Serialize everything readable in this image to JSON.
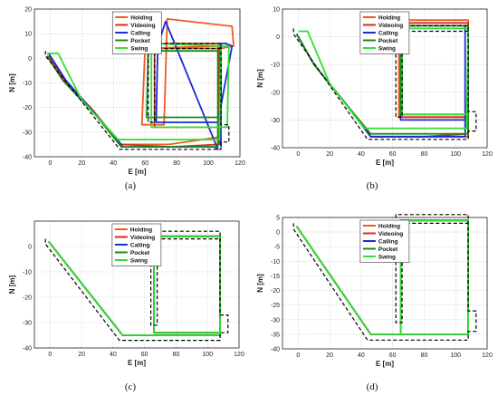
{
  "chart_data": [
    {
      "type": "line",
      "caption": "(a)",
      "xlabel": "E [m]",
      "ylabel": "N [m]",
      "xlim": [
        -10,
        120
      ],
      "ylim": [
        -40,
        20
      ],
      "xticks": [
        0,
        20,
        40,
        60,
        80,
        100,
        120
      ],
      "yticks": [
        20,
        10,
        0,
        -10,
        -20,
        -30,
        -40
      ],
      "grid": true,
      "legend_position": "top",
      "reference": {
        "name": "",
        "style": "dashed",
        "color": "#000000",
        "x": [
          -3,
          -3,
          44,
          108,
          108,
          113,
          113,
          108,
          108,
          62,
          62,
          66,
          66,
          108
        ],
        "y": [
          3,
          1,
          -37,
          -37,
          -34,
          -34,
          -27,
          -27,
          6,
          6,
          -26,
          -26,
          4,
          4
        ]
      },
      "series": [
        {
          "name": "Holding",
          "color": "#ee5a24",
          "x": [
            -2,
            6,
            27,
            44,
            75,
            107,
            106,
            60,
            58,
            72,
            74,
            115,
            116,
            108,
            66
          ],
          "y": [
            1,
            -7,
            -21,
            -35,
            -35,
            -32,
            5,
            4,
            -27,
            -27,
            16,
            13,
            5,
            4,
            4
          ]
        },
        {
          "name": "Videoing",
          "color": "#e0281a",
          "x": [
            -1,
            8,
            28,
            45,
            76,
            107,
            107,
            66,
            66,
            108
          ],
          "y": [
            1,
            -8,
            -22,
            -35,
            -36,
            -35,
            6,
            6,
            -28,
            -28
          ]
        },
        {
          "name": "Calling",
          "color": "#1b2bd6",
          "x": [
            -1,
            10,
            29,
            46,
            78,
            104,
            106,
            73,
            68,
            67,
            106,
            115,
            111,
            108,
            108
          ],
          "y": [
            2,
            -9,
            -23,
            -36,
            -36,
            -36,
            -37,
            15,
            5,
            -26,
            -26,
            5,
            6,
            6,
            -36
          ]
        },
        {
          "name": "Pocket",
          "color": "#1a8a1a",
          "x": [
            -2,
            8,
            30,
            45,
            80,
            106,
            106,
            62,
            61,
            107
          ],
          "y": [
            1,
            -9,
            -24,
            -36,
            -36,
            -36,
            3,
            3,
            -24,
            -24
          ]
        },
        {
          "name": "Swing",
          "color": "#33dd33",
          "x": [
            -2,
            5,
            20,
            43,
            107,
            108,
            64,
            64,
            112,
            113,
            105
          ],
          "y": [
            2,
            2,
            -17,
            -33,
            -33,
            5,
            6,
            -28,
            -28,
            5,
            5
          ]
        }
      ]
    },
    {
      "type": "line",
      "caption": "(b)",
      "xlabel": "E [m]",
      "ylabel": "N [m]",
      "xlim": [
        -10,
        120
      ],
      "ylim": [
        -40,
        10
      ],
      "xticks": [
        0,
        20,
        40,
        60,
        80,
        100,
        120
      ],
      "yticks": [
        10,
        0,
        -10,
        -20,
        -30,
        -40
      ],
      "grid": true,
      "legend_position": "top",
      "reference": {
        "name": "",
        "style": "dashed",
        "color": "#000000",
        "x": [
          -3,
          -3,
          44,
          108,
          108,
          113,
          113,
          108,
          108,
          62,
          62,
          66,
          66,
          108
        ],
        "y": [
          3,
          1,
          -37,
          -37,
          -34,
          -34,
          -27,
          -27,
          4,
          4,
          -29,
          -29,
          2,
          2
        ]
      },
      "series": [
        {
          "name": "Holding",
          "color": "#ee5a24",
          "x": [
            -1,
            10,
            30,
            46,
            80,
            108,
            108,
            64,
            64,
            108
          ],
          "y": [
            1,
            -10,
            -24,
            -36,
            -36,
            -36,
            6,
            6,
            -29,
            -29
          ]
        },
        {
          "name": "Videoing",
          "color": "#e0281a",
          "x": [
            -1,
            10,
            30,
            46,
            80,
            108,
            108,
            65,
            65,
            108
          ],
          "y": [
            1,
            -10,
            -24,
            -36,
            -36,
            -35,
            5,
            5,
            -29,
            -29
          ]
        },
        {
          "name": "Calling",
          "color": "#1b2bd6",
          "x": [
            -1,
            10,
            30,
            46,
            80,
            106,
            106,
            65,
            65,
            106
          ],
          "y": [
            1,
            -10,
            -24,
            -36,
            -36,
            -36,
            4,
            4,
            -30,
            -30
          ]
        },
        {
          "name": "Pocket",
          "color": "#1a8a1a",
          "x": [
            -1,
            10,
            30,
            46,
            80,
            108,
            108,
            65,
            65,
            108
          ],
          "y": [
            1,
            -10,
            -24,
            -35,
            -35,
            -35,
            4,
            4,
            -28,
            -28
          ]
        },
        {
          "name": "Swing",
          "color": "#33dd33",
          "x": [
            0,
            6,
            20,
            42,
            107,
            108,
            66,
            66,
            108
          ],
          "y": [
            2,
            2,
            -17,
            -33,
            -33,
            3,
            3,
            -28,
            -28
          ]
        }
      ]
    },
    {
      "type": "line",
      "caption": "(c)",
      "xlabel": "E [m]",
      "ylabel": "N [m]",
      "xlim": [
        -10,
        120
      ],
      "ylim": [
        -40,
        10
      ],
      "xticks": [
        0,
        20,
        40,
        60,
        80,
        100,
        120
      ],
      "yticks": [
        0,
        -10,
        -20,
        -30,
        -40
      ],
      "grid": true,
      "legend_position": "top",
      "reference": {
        "name": "",
        "style": "dashed",
        "color": "#000000",
        "x": [
          -3,
          -3,
          44,
          108,
          108,
          113,
          113,
          108,
          108,
          64,
          64,
          68,
          68,
          108
        ],
        "y": [
          3,
          1,
          -37,
          -37,
          -34,
          -34,
          -27,
          -27,
          6,
          6,
          -31,
          -31,
          3,
          3
        ]
      },
      "series": [
        {
          "name": "Holding",
          "color": "#ee5a24",
          "x": [
            -1,
            46,
            108,
            108,
            66,
            66,
            108
          ],
          "y": [
            2,
            -35,
            -35,
            4,
            4,
            -34,
            -34
          ]
        },
        {
          "name": "Videoing",
          "color": "#e0281a",
          "x": [
            -1,
            46,
            108,
            108,
            66,
            66,
            108
          ],
          "y": [
            2,
            -35,
            -35,
            4,
            4,
            -34,
            -34
          ]
        },
        {
          "name": "Calling",
          "color": "#1b2bd6",
          "x": [
            -1,
            46,
            108,
            108,
            66,
            66,
            108
          ],
          "y": [
            2,
            -35,
            -35,
            4,
            4,
            -34,
            -34
          ]
        },
        {
          "name": "Pocket",
          "color": "#1a8a1a",
          "x": [
            -1,
            46,
            108,
            108,
            66,
            66,
            108
          ],
          "y": [
            2,
            -35,
            -35,
            4,
            4,
            -34,
            -34
          ]
        },
        {
          "name": "Swing",
          "color": "#33dd33",
          "x": [
            -1,
            46,
            108,
            108,
            66,
            66,
            108
          ],
          "y": [
            2,
            -35,
            -35,
            4,
            4,
            -34,
            -34
          ]
        }
      ]
    },
    {
      "type": "line",
      "caption": "(d)",
      "xlabel": "E [m]",
      "ylabel": "N [m]",
      "xlim": [
        -10,
        120
      ],
      "ylim": [
        -40,
        5
      ],
      "xticks": [
        0,
        20,
        40,
        60,
        80,
        100,
        120
      ],
      "yticks": [
        5,
        0,
        -5,
        -10,
        -15,
        -20,
        -25,
        -30,
        -35,
        -40
      ],
      "grid": true,
      "legend_position": "top",
      "reference": {
        "name": "",
        "style": "dashed",
        "color": "#000000",
        "x": [
          -3,
          -3,
          44,
          108,
          108,
          113,
          113,
          108,
          108,
          62,
          62,
          66,
          66,
          108
        ],
        "y": [
          3,
          1,
          -37,
          -37,
          -34,
          -34,
          -27,
          -27,
          6,
          6,
          -31,
          -31,
          3,
          3
        ]
      },
      "series": [
        {
          "name": "Holding",
          "color": "#ee5a24",
          "x": [
            -1,
            46,
            108,
            108,
            65,
            65,
            108
          ],
          "y": [
            2,
            -35,
            -35,
            4,
            4,
            -35,
            -35
          ]
        },
        {
          "name": "Videoing",
          "color": "#e0281a",
          "x": [
            -1,
            46,
            108,
            108,
            65,
            65,
            108
          ],
          "y": [
            2,
            -35,
            -35,
            4,
            4,
            -35,
            -35
          ]
        },
        {
          "name": "Calling",
          "color": "#1b2bd6",
          "x": [
            -1,
            46,
            108,
            108,
            65,
            65,
            108
          ],
          "y": [
            2,
            -35,
            -35,
            4,
            4,
            -35,
            -35
          ]
        },
        {
          "name": "Pocket",
          "color": "#1a8a1a",
          "x": [
            -1,
            46,
            108,
            108,
            65,
            65,
            108
          ],
          "y": [
            2,
            -35,
            -35,
            4,
            4,
            -35,
            -35
          ]
        },
        {
          "name": "Swing",
          "color": "#33dd33",
          "x": [
            -1,
            46,
            108,
            108,
            65,
            65,
            108
          ],
          "y": [
            2,
            -35,
            -35,
            4,
            4,
            -35,
            -35
          ]
        }
      ]
    }
  ]
}
